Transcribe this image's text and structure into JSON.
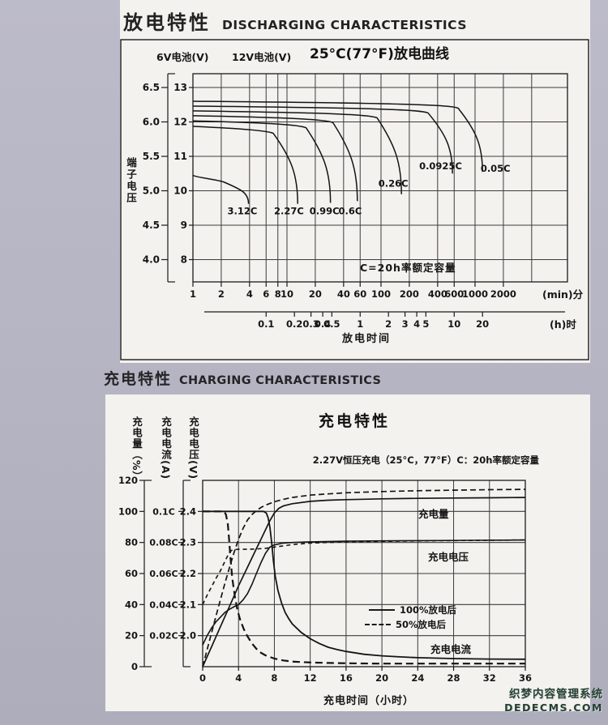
{
  "page": {
    "title1_zh": "放电特性",
    "title1_en": "DISCHARGING CHARACTERISTICS",
    "title2_zh": "充电特性",
    "title2_en": "CHARGING CHARACTERISTICS",
    "watermark_line1": "织梦内容管理系统",
    "watermark_line2": "DEDECMS.COM",
    "colors": {
      "page_bg": "#b7b6c3",
      "paper": "#f4f2ee",
      "ink": "#1c1c1c",
      "watermark": "#24412f"
    }
  },
  "chart_data": [
    {
      "type": "line",
      "title": "25°C(77°F)放电曲线",
      "y_axis_6v_label": "6V电池(V)",
      "y_axis_12v_label": "12V电池(V)",
      "y_axis_side_label": "端子电压",
      "note": "C=20h率额定容量",
      "xlabel": "放电时间",
      "x_unit_min": "(min)分",
      "x_unit_h": "(h)时",
      "x_scale": "log-minutes",
      "xlim_min": [
        1,
        9000
      ],
      "ylim_12v": [
        7.35,
        13.4
      ],
      "y_ticks_12v": [
        "13",
        "12",
        "11",
        "10",
        "9",
        "8"
      ],
      "y_ticks_6v": [
        "6.5",
        "6.0",
        "5.5",
        "5.0",
        "4.5",
        "4.0"
      ],
      "x_gridlines_min": [
        1,
        2,
        4,
        6,
        8,
        10,
        20,
        40,
        60,
        100,
        200,
        400,
        600,
        1000,
        2000,
        4000
      ],
      "x_ticks_min": [
        1,
        2,
        4,
        6,
        8,
        10,
        20,
        40,
        60,
        100,
        200,
        400,
        600,
        1000,
        2000
      ],
      "x_ticks_h": [
        0.1,
        0.2,
        0.3,
        0.4,
        0.5,
        1,
        2,
        3,
        4,
        5,
        10,
        20
      ],
      "series": [
        {
          "label": "3.12C",
          "plateau_v": 10.45,
          "end_min": 3.9,
          "end_v": 9.62,
          "label_t": 3.35,
          "label_v": 9.32
        },
        {
          "label": "2.27C",
          "plateau_v": 11.87,
          "end_min": 13,
          "end_v": 9.62,
          "label_t": 10.5,
          "label_v": 9.32
        },
        {
          "label": "0.99C",
          "plateau_v": 12.03,
          "end_min": 29,
          "end_v": 9.65,
          "label_t": 25,
          "label_v": 9.32
        },
        {
          "label": "0.6C",
          "plateau_v": 12.18,
          "end_min": 56,
          "end_v": 9.7,
          "label_t": 47,
          "label_v": 9.32
        },
        {
          "label": "0.26C",
          "plateau_v": 12.32,
          "end_min": 165,
          "end_v": 9.9,
          "label_t": 135,
          "label_v": 10.12
        },
        {
          "label": "0.0925C",
          "plateau_v": 12.46,
          "end_min": 575,
          "end_v": 10.5,
          "label_t": 430,
          "label_v": 10.62
        },
        {
          "label": "0.05C",
          "plateau_v": 12.6,
          "end_min": 1200,
          "end_v": 10.55,
          "label_t": 1650,
          "label_v": 10.55
        }
      ]
    },
    {
      "type": "line",
      "title": "充电特性",
      "subtitle": "2.27V恒压充电（25°C，77°F）C：20h率额定容量",
      "axis_quantity": "充电量（%）",
      "axis_current": "充电电流(A)",
      "axis_voltage": "充电电压(V)",
      "xlabel": "充电时间（小时）",
      "xlim_hours": [
        0,
        36
      ],
      "x_ticks": [
        0,
        4,
        8,
        12,
        16,
        20,
        24,
        28,
        32,
        36
      ],
      "pct_ticks": [
        "120",
        "100",
        "80",
        "60",
        "40",
        "20",
        "0"
      ],
      "current_ticks": [
        "0.1C",
        "0.08C",
        "0.06C",
        "0.04C",
        "0.02C"
      ],
      "volt_ticks": [
        "2.4",
        "2.3",
        "2.2",
        "2.1",
        "2.0"
      ],
      "legend": {
        "solid": "100%放电后",
        "dashed": "50%放电后"
      },
      "curve_labels": [
        {
          "text": "充电量"
        },
        {
          "text": "充电电压"
        },
        {
          "text": "充电电流"
        }
      ],
      "series": [
        {
          "name": "charge-quantity-after-100%-discharge",
          "role": "capacity",
          "style": "solid",
          "axis": "pct",
          "points": [
            [
              0,
              0
            ],
            [
              1,
              13
            ],
            [
              2,
              26
            ],
            [
              3,
              39
            ],
            [
              4,
              52
            ],
            [
              5,
              64
            ],
            [
              6,
              76
            ],
            [
              6.5,
              82
            ],
            [
              7,
              88
            ],
            [
              7.5,
              94
            ],
            [
              8,
              99
            ],
            [
              8.5,
              102
            ],
            [
              9,
              103.5
            ],
            [
              10,
              105
            ],
            [
              12,
              106.5
            ],
            [
              14,
              107.2
            ],
            [
              16,
              107.6
            ],
            [
              20,
              108.1
            ],
            [
              24,
              108.4
            ],
            [
              28,
              108.6
            ],
            [
              32,
              108.8
            ],
            [
              36,
              109
            ]
          ]
        },
        {
          "name": "charge-quantity-after-50%-discharge",
          "role": "capacity",
          "style": "dashed",
          "axis": "pct",
          "points": [
            [
              0,
              0
            ],
            [
              0.5,
              11
            ],
            [
              1,
              22
            ],
            [
              1.5,
              33
            ],
            [
              2,
              43.5
            ],
            [
              2.5,
              54
            ],
            [
              3,
              64
            ],
            [
              3.5,
              73.5
            ],
            [
              4,
              82
            ],
            [
              4.5,
              89
            ],
            [
              5,
              94.5
            ],
            [
              5.5,
              98
            ],
            [
              6,
              100.5
            ],
            [
              6.5,
              102.5
            ],
            [
              7,
              104
            ],
            [
              8,
              106.2
            ],
            [
              9,
              107.8
            ],
            [
              10,
              109
            ],
            [
              12,
              110.5
            ],
            [
              14,
              111.3
            ],
            [
              16,
              112
            ],
            [
              20,
              112.8
            ],
            [
              24,
              113.3
            ],
            [
              28,
              113.7
            ],
            [
              32,
              114
            ],
            [
              36,
              114.2
            ]
          ]
        },
        {
          "name": "charge-voltage-after-100%-discharge",
          "role": "voltage",
          "style": "solid",
          "axis": "volt",
          "points": [
            [
              0,
              1.97
            ],
            [
              0.5,
              2.0
            ],
            [
              1,
              2.025
            ],
            [
              1.5,
              2.045
            ],
            [
              2,
              2.06
            ],
            [
              2.5,
              2.075
            ],
            [
              3,
              2.085
            ],
            [
              3.5,
              2.093
            ],
            [
              4,
              2.1
            ],
            [
              4.5,
              2.115
            ],
            [
              5,
              2.135
            ],
            [
              5.5,
              2.165
            ],
            [
              6,
              2.2
            ],
            [
              6.5,
              2.235
            ],
            [
              7,
              2.265
            ],
            [
              7.5,
              2.285
            ],
            [
              8,
              2.292
            ],
            [
              9,
              2.298
            ],
            [
              10,
              2.3
            ],
            [
              12,
              2.302
            ],
            [
              16,
              2.304
            ],
            [
              20,
              2.305
            ],
            [
              24,
              2.306
            ],
            [
              30,
              2.307
            ],
            [
              36,
              2.308
            ]
          ]
        },
        {
          "name": "charge-voltage-after-50%-discharge",
          "role": "voltage",
          "style": "dashed",
          "axis": "volt",
          "points": [
            [
              0,
              2.1
            ],
            [
              0.5,
              2.13
            ],
            [
              1,
              2.158
            ],
            [
              1.5,
              2.185
            ],
            [
              2,
              2.21
            ],
            [
              2.5,
              2.24
            ],
            [
              2.8,
              2.258
            ],
            [
              3,
              2.268
            ],
            [
              3.2,
              2.274
            ],
            [
              3.5,
              2.277
            ],
            [
              4,
              2.278
            ],
            [
              5,
              2.278
            ],
            [
              6,
              2.279
            ],
            [
              7,
              2.281
            ],
            [
              8,
              2.285
            ],
            [
              9,
              2.289
            ],
            [
              10,
              2.293
            ],
            [
              12,
              2.298
            ],
            [
              16,
              2.302
            ],
            [
              24,
              2.305
            ],
            [
              36,
              2.308
            ]
          ]
        },
        {
          "name": "charge-current-after-100%-discharge",
          "role": "current",
          "style": "solid",
          "axis": "pct",
          "points": [
            [
              0,
              100
            ],
            [
              6.8,
              100
            ],
            [
              7.1,
              99
            ],
            [
              7.3,
              96
            ],
            [
              7.5,
              90
            ],
            [
              7.7,
              80
            ],
            [
              7.9,
              68
            ],
            [
              8.1,
              58
            ],
            [
              8.4,
              49
            ],
            [
              8.8,
              41
            ],
            [
              9.2,
              35
            ],
            [
              9.6,
              31
            ],
            [
              10,
              27.5
            ],
            [
              11,
              22
            ],
            [
              12,
              18
            ],
            [
              13,
              15
            ],
            [
              14,
              12.5
            ],
            [
              15,
              11
            ],
            [
              16,
              9.8
            ],
            [
              18,
              8
            ],
            [
              20,
              7
            ],
            [
              22,
              6.3
            ],
            [
              24,
              5.8
            ],
            [
              28,
              5.2
            ],
            [
              32,
              4.9
            ],
            [
              36,
              4.8
            ]
          ]
        },
        {
          "name": "charge-current-after-50%-discharge",
          "role": "current",
          "style": "dashed",
          "axis": "pct",
          "points": [
            [
              0,
              100
            ],
            [
              2.4,
              100
            ],
            [
              2.6,
              98
            ],
            [
              2.8,
              92
            ],
            [
              2.95,
              82
            ],
            [
              3.1,
              70
            ],
            [
              3.3,
              57
            ],
            [
              3.6,
              45
            ],
            [
              3.9,
              36
            ],
            [
              4.2,
              30
            ],
            [
              4.6,
              24
            ],
            [
              5,
              19.5
            ],
            [
              5.5,
              15
            ],
            [
              6,
              11.5
            ],
            [
              6.5,
              9
            ],
            [
              7,
              7.3
            ],
            [
              8,
              5.2
            ],
            [
              9,
              4
            ],
            [
              10,
              3.3
            ],
            [
              12,
              2.7
            ],
            [
              14,
              2.4
            ],
            [
              16,
              2.2
            ],
            [
              20,
              2
            ],
            [
              24,
              2
            ],
            [
              28,
              2
            ],
            [
              32,
              2
            ],
            [
              36,
              2
            ]
          ]
        }
      ]
    }
  ]
}
